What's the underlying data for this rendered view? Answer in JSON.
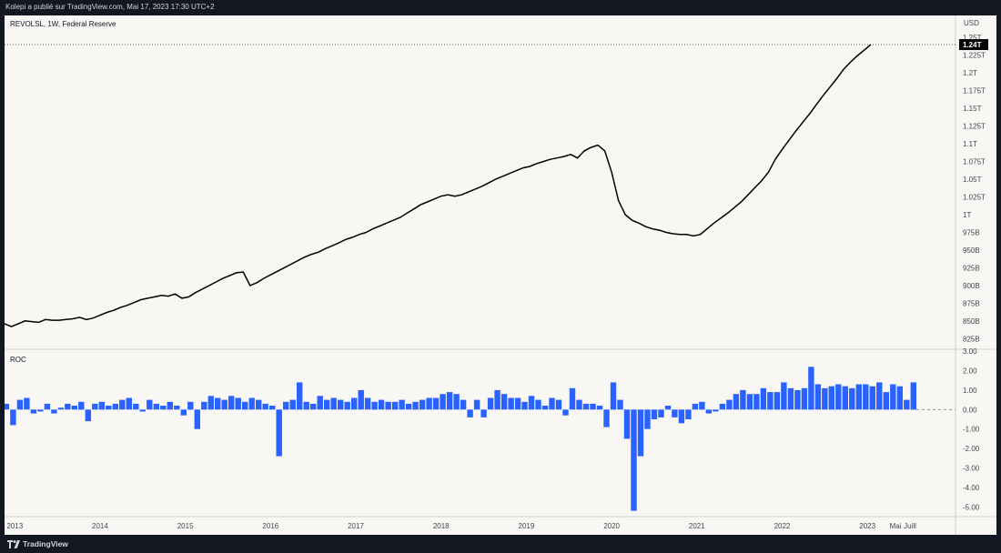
{
  "header": {
    "publisher_text": "Kolepi a publié sur TradingView.com, Mai 17, 2023 17:30 UTC+2"
  },
  "footer": {
    "brand": "TradingView"
  },
  "colors": {
    "background": "#f8f7f3",
    "frame": "#131722",
    "line": "#000000",
    "bar": "#2962ff",
    "axis_text": "#434651",
    "badge": "#000000"
  },
  "chart_data": [
    {
      "type": "line",
      "title": "REVOLSL, 1W, Federal Reserve",
      "currency": "USD",
      "last_value_label": "1.24T",
      "ylim": [
        810,
        1258
      ],
      "y_ticks": [
        {
          "v": 825,
          "label": "825B"
        },
        {
          "v": 850,
          "label": "850B"
        },
        {
          "v": 875,
          "label": "875B"
        },
        {
          "v": 900,
          "label": "900B"
        },
        {
          "v": 925,
          "label": "925B"
        },
        {
          "v": 950,
          "label": "950B"
        },
        {
          "v": 975,
          "label": "975B"
        },
        {
          "v": 1000,
          "label": "1T"
        },
        {
          "v": 1025,
          "label": "1.025T"
        },
        {
          "v": 1050,
          "label": "1.05T"
        },
        {
          "v": 1075,
          "label": "1.075T"
        },
        {
          "v": 1100,
          "label": "1.1T"
        },
        {
          "v": 1125,
          "label": "1.125T"
        },
        {
          "v": 1150,
          "label": "1.15T"
        },
        {
          "v": 1175,
          "label": "1.175T"
        },
        {
          "v": 1200,
          "label": "1.2T"
        },
        {
          "v": 1225,
          "label": "1.225T"
        },
        {
          "v": 1250,
          "label": "1.25T"
        }
      ],
      "x_ticks": [
        "2013",
        "2014",
        "2015",
        "2016",
        "2017",
        "2018",
        "2019",
        "2020",
        "2021",
        "2022",
        "2023",
        "Mai",
        "Juill"
      ],
      "x_tick_times": [
        2013.0,
        2014.0,
        2015.0,
        2016.0,
        2017.0,
        2018.0,
        2019.0,
        2020.0,
        2021.0,
        2022.0,
        2023.0,
        2023.33,
        2023.5
      ],
      "x_range": [
        2012.88,
        2023.98
      ],
      "x": [
        2012.88,
        2012.96,
        2013.04,
        2013.12,
        2013.2,
        2013.28,
        2013.36,
        2013.44,
        2013.52,
        2013.6,
        2013.68,
        2013.76,
        2013.84,
        2013.92,
        2014.0,
        2014.08,
        2014.16,
        2014.24,
        2014.32,
        2014.4,
        2014.48,
        2014.56,
        2014.64,
        2014.72,
        2014.8,
        2014.88,
        2014.96,
        2015.04,
        2015.12,
        2015.2,
        2015.28,
        2015.36,
        2015.44,
        2015.52,
        2015.6,
        2015.68,
        2015.76,
        2015.84,
        2015.92,
        2016.0,
        2016.08,
        2016.16,
        2016.24,
        2016.32,
        2016.4,
        2016.48,
        2016.56,
        2016.64,
        2016.72,
        2016.8,
        2016.88,
        2016.96,
        2017.04,
        2017.12,
        2017.2,
        2017.28,
        2017.36,
        2017.44,
        2017.52,
        2017.6,
        2017.68,
        2017.76,
        2017.84,
        2017.92,
        2018.0,
        2018.08,
        2018.16,
        2018.24,
        2018.32,
        2018.4,
        2018.48,
        2018.56,
        2018.64,
        2018.72,
        2018.8,
        2018.88,
        2018.96,
        2019.04,
        2019.12,
        2019.2,
        2019.28,
        2019.36,
        2019.44,
        2019.52,
        2019.6,
        2019.68,
        2019.76,
        2019.84,
        2019.92,
        2020.0,
        2020.08,
        2020.16,
        2020.24,
        2020.32,
        2020.4,
        2020.48,
        2020.56,
        2020.64,
        2020.72,
        2020.8,
        2020.88,
        2020.96,
        2021.04,
        2021.12,
        2021.2,
        2021.28,
        2021.36,
        2021.44,
        2021.52,
        2021.6,
        2021.68,
        2021.76,
        2021.84,
        2021.92,
        2022.0,
        2022.08,
        2022.16,
        2022.24,
        2022.32,
        2022.4,
        2022.48,
        2022.56,
        2022.64,
        2022.72,
        2022.8,
        2022.88,
        2022.96,
        2023.04
      ],
      "values": [
        846,
        842,
        846,
        850,
        849,
        848,
        852,
        851,
        851,
        852,
        853,
        855,
        852,
        854,
        858,
        862,
        865,
        869,
        872,
        876,
        880,
        882,
        884,
        886,
        885,
        888,
        882,
        884,
        890,
        895,
        900,
        905,
        910,
        914,
        918,
        919,
        900,
        904,
        910,
        915,
        920,
        925,
        930,
        935,
        940,
        944,
        947,
        952,
        956,
        960,
        965,
        968,
        972,
        975,
        980,
        984,
        988,
        992,
        996,
        1002,
        1008,
        1014,
        1018,
        1022,
        1026,
        1028,
        1026,
        1028,
        1032,
        1036,
        1040,
        1045,
        1050,
        1054,
        1058,
        1062,
        1066,
        1068,
        1072,
        1075,
        1078,
        1080,
        1082,
        1085,
        1080,
        1090,
        1095,
        1098,
        1090,
        1060,
        1020,
        1000,
        992,
        988,
        983,
        980,
        978,
        975,
        973,
        972,
        972,
        970,
        972,
        980,
        988,
        995,
        1002,
        1010,
        1018,
        1028,
        1038,
        1048,
        1060,
        1078,
        1092,
        1105,
        1118,
        1130,
        1142,
        1155,
        1168,
        1180,
        1192,
        1205,
        1215,
        1224,
        1232,
        1240
      ]
    },
    {
      "type": "bar",
      "title": "ROC",
      "ylim": [
        -5.5,
        3.1
      ],
      "y_ticks": [
        {
          "v": 3,
          "label": "3.00"
        },
        {
          "v": 2,
          "label": "2.00"
        },
        {
          "v": 1,
          "label": "1.00"
        },
        {
          "v": 0,
          "label": "0.00"
        },
        {
          "v": -1,
          "label": "-1.00"
        },
        {
          "v": -2,
          "label": "-2.00"
        },
        {
          "v": -3,
          "label": "-3.00"
        },
        {
          "v": -4,
          "label": "-4.00"
        },
        {
          "v": -5,
          "label": "-5.00"
        }
      ],
      "x_start": 2012.9,
      "x_step": 0.08,
      "values": [
        0.3,
        -0.8,
        0.5,
        0.6,
        -0.2,
        -0.1,
        0.3,
        -0.2,
        0.1,
        0.3,
        0.2,
        0.4,
        -0.6,
        0.3,
        0.4,
        0.2,
        0.3,
        0.5,
        0.6,
        0.3,
        -0.1,
        0.5,
        0.3,
        0.2,
        0.4,
        0.2,
        -0.3,
        0.4,
        -1.0,
        0.4,
        0.7,
        0.6,
        0.5,
        0.7,
        0.6,
        0.4,
        0.6,
        0.5,
        0.3,
        0.2,
        -2.4,
        0.4,
        0.5,
        1.4,
        0.4,
        0.3,
        0.7,
        0.5,
        0.6,
        0.5,
        0.4,
        0.6,
        1.0,
        0.6,
        0.4,
        0.5,
        0.4,
        0.4,
        0.5,
        0.3,
        0.4,
        0.5,
        0.6,
        0.6,
        0.8,
        0.9,
        0.8,
        0.5,
        -0.4,
        0.5,
        -0.4,
        0.6,
        1.0,
        0.8,
        0.6,
        0.6,
        0.4,
        0.7,
        0.5,
        0.2,
        0.6,
        0.5,
        -0.3,
        1.1,
        0.5,
        0.3,
        0.3,
        0.2,
        -0.9,
        1.4,
        0.5,
        -1.5,
        -5.2,
        -2.4,
        -1.0,
        -0.5,
        -0.4,
        0.2,
        -0.4,
        -0.7,
        -0.5,
        0.3,
        0.4,
        -0.2,
        -0.1,
        0.3,
        0.5,
        0.8,
        1.0,
        0.8,
        0.8,
        1.1,
        0.9,
        0.9,
        1.4,
        1.1,
        1.0,
        1.1,
        2.2,
        1.3,
        1.1,
        1.2,
        1.3,
        1.2,
        1.1,
        1.3,
        1.3,
        1.2,
        1.4,
        0.9,
        1.3,
        1.2,
        0.5,
        1.4
      ]
    }
  ]
}
